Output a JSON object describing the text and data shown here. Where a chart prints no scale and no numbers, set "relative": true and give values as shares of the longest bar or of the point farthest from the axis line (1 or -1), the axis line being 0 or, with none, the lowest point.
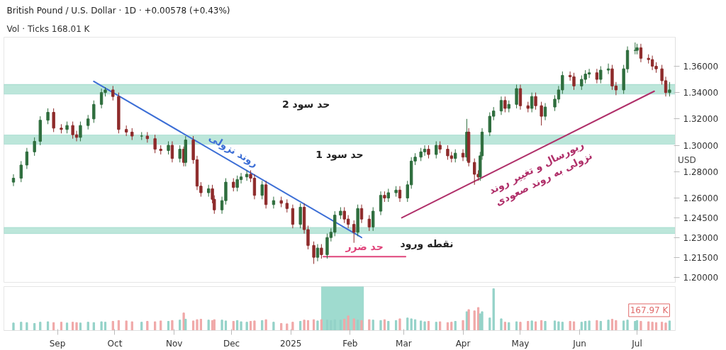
{
  "chart_data": [
    {
      "type": "candlestick",
      "title": "British Pound / U.S. Dollar · 1D · +0.00578 (+0.43%)",
      "subtitle": "Vol · Ticks 168.01 K",
      "ylabel": "USD",
      "x": [
        "2024-08-09",
        "2024-08-13",
        "2024-08-16",
        "2024-08-20",
        "2024-08-23",
        "2024-08-27",
        "2024-08-30",
        "2024-09-03",
        "2024-09-06",
        "2024-09-09",
        "2024-09-11",
        "2024-09-13",
        "2024-09-17",
        "2024-09-20",
        "2024-09-24",
        "2024-09-26",
        "2024-09-30",
        "2024-10-03",
        "2024-10-07",
        "2024-10-10",
        "2024-10-15",
        "2024-10-18",
        "2024-10-22",
        "2024-10-25",
        "2024-10-29",
        "2024-10-31",
        "2024-11-04",
        "2024-11-06",
        "2024-11-07",
        "2024-11-11",
        "2024-11-13",
        "2024-11-15",
        "2024-11-19",
        "2024-11-21",
        "2024-11-22",
        "2024-11-26",
        "2024-11-28",
        "2024-12-02",
        "2024-12-04",
        "2024-12-06",
        "2024-12-09",
        "2024-12-11",
        "2024-12-13",
        "2024-12-17",
        "2024-12-19",
        "2024-12-23",
        "2024-12-27",
        "2024-12-30",
        "2025-01-02",
        "2025-01-06",
        "2025-01-08",
        "2025-01-10",
        "2025-01-13",
        "2025-01-15",
        "2025-01-17",
        "2025-01-20",
        "2025-01-22",
        "2025-01-24",
        "2025-01-27",
        "2025-01-29",
        "2025-01-31",
        "2025-02-03",
        "2025-02-05",
        "2025-02-07",
        "2025-02-11",
        "2025-02-13",
        "2025-02-17",
        "2025-02-19",
        "2025-02-21",
        "2025-02-25",
        "2025-02-27",
        "2025-03-03",
        "2025-03-05",
        "2025-03-07",
        "2025-03-10",
        "2025-03-12",
        "2025-03-14",
        "2025-03-18",
        "2025-03-20",
        "2025-03-24",
        "2025-03-26",
        "2025-03-28",
        "2025-04-01",
        "2025-04-03",
        "2025-04-04",
        "2025-04-07",
        "2025-04-09",
        "2025-04-10",
        "2025-04-11",
        "2025-04-15",
        "2025-04-17",
        "2025-04-21",
        "2025-04-23",
        "2025-04-25",
        "2025-04-29",
        "2025-05-01",
        "2025-05-05",
        "2025-05-07",
        "2025-05-09",
        "2025-05-12",
        "2025-05-14",
        "2025-05-19",
        "2025-05-21",
        "2025-05-23",
        "2025-05-27",
        "2025-05-29",
        "2025-06-02",
        "2025-06-04",
        "2025-06-06",
        "2025-06-10",
        "2025-06-12",
        "2025-06-16",
        "2025-06-18",
        "2025-06-20",
        "2025-06-24",
        "2025-06-26",
        "2025-06-30",
        "2025-07-01",
        "2025-07-03",
        "2025-07-07",
        "2025-07-09",
        "2025-07-11",
        "2025-07-14",
        "2025-07-16",
        "2025-07-18"
      ],
      "ohlc": [
        [
          1.272,
          1.278,
          1.269,
          1.275
        ],
        [
          1.275,
          1.288,
          1.272,
          1.285
        ],
        [
          1.285,
          1.298,
          1.282,
          1.295
        ],
        [
          1.295,
          1.306,
          1.292,
          1.303
        ],
        [
          1.303,
          1.322,
          1.3,
          1.319
        ],
        [
          1.319,
          1.328,
          1.316,
          1.325
        ],
        [
          1.325,
          1.328,
          1.31,
          1.313
        ],
        [
          1.313,
          1.316,
          1.309,
          1.312
        ],
        [
          1.312,
          1.318,
          1.309,
          1.315
        ],
        [
          1.315,
          1.318,
          1.305,
          1.308
        ],
        [
          1.308,
          1.311,
          1.303,
          1.306
        ],
        [
          1.306,
          1.318,
          1.303,
          1.315
        ],
        [
          1.315,
          1.323,
          1.312,
          1.32
        ],
        [
          1.32,
          1.334,
          1.317,
          1.331
        ],
        [
          1.331,
          1.343,
          1.328,
          1.34
        ],
        [
          1.34,
          1.344,
          1.337,
          1.342
        ],
        [
          1.342,
          1.345,
          1.334,
          1.337
        ],
        [
          1.337,
          1.34,
          1.309,
          1.312
        ],
        [
          1.312,
          1.315,
          1.307,
          1.31
        ],
        [
          1.31,
          1.313,
          1.304,
          1.307
        ],
        [
          1.307,
          1.31,
          1.304,
          1.307
        ],
        [
          1.307,
          1.31,
          1.302,
          1.305
        ],
        [
          1.305,
          1.308,
          1.294,
          1.297
        ],
        [
          1.297,
          1.3,
          1.293,
          1.296
        ],
        [
          1.296,
          1.303,
          1.293,
          1.3
        ],
        [
          1.3,
          1.303,
          1.287,
          1.29
        ],
        [
          1.29,
          1.3,
          1.287,
          1.297
        ],
        [
          1.297,
          1.299,
          1.284,
          1.287
        ],
        [
          1.287,
          1.307,
          1.284,
          1.304
        ],
        [
          1.304,
          1.307,
          1.286,
          1.289
        ],
        [
          1.289,
          1.292,
          1.266,
          1.269
        ],
        [
          1.269,
          1.272,
          1.261,
          1.264
        ],
        [
          1.264,
          1.27,
          1.261,
          1.267
        ],
        [
          1.267,
          1.27,
          1.256,
          1.259
        ],
        [
          1.259,
          1.262,
          1.248,
          1.251
        ],
        [
          1.251,
          1.261,
          1.248,
          1.258
        ],
        [
          1.258,
          1.275,
          1.255,
          1.272
        ],
        [
          1.272,
          1.275,
          1.265,
          1.268
        ],
        [
          1.268,
          1.277,
          1.265,
          1.274
        ],
        [
          1.274,
          1.279,
          1.271,
          1.276
        ],
        [
          1.276,
          1.281,
          1.273,
          1.278
        ],
        [
          1.278,
          1.281,
          1.272,
          1.275
        ],
        [
          1.275,
          1.278,
          1.259,
          1.262
        ],
        [
          1.262,
          1.273,
          1.259,
          1.27
        ],
        [
          1.27,
          1.273,
          1.252,
          1.255
        ],
        [
          1.255,
          1.261,
          1.252,
          1.258
        ],
        [
          1.258,
          1.261,
          1.253,
          1.256
        ],
        [
          1.256,
          1.259,
          1.249,
          1.252
        ],
        [
          1.252,
          1.255,
          1.237,
          1.24
        ],
        [
          1.24,
          1.256,
          1.237,
          1.253
        ],
        [
          1.253,
          1.256,
          1.233,
          1.236
        ],
        [
          1.236,
          1.239,
          1.221,
          1.224
        ],
        [
          1.224,
          1.227,
          1.21,
          1.215
        ],
        [
          1.215,
          1.225,
          1.212,
          1.222
        ],
        [
          1.222,
          1.225,
          1.214,
          1.217
        ],
        [
          1.217,
          1.233,
          1.214,
          1.23
        ],
        [
          1.23,
          1.237,
          1.227,
          1.234
        ],
        [
          1.234,
          1.25,
          1.231,
          1.247
        ],
        [
          1.247,
          1.253,
          1.244,
          1.25
        ],
        [
          1.25,
          1.253,
          1.241,
          1.244
        ],
        [
          1.244,
          1.247,
          1.237,
          1.24
        ],
        [
          1.24,
          1.243,
          1.226,
          1.234
        ],
        [
          1.234,
          1.255,
          1.231,
          1.252
        ],
        [
          1.252,
          1.255,
          1.241,
          1.244
        ],
        [
          1.244,
          1.247,
          1.235,
          1.238
        ],
        [
          1.238,
          1.253,
          1.235,
          1.25
        ],
        [
          1.25,
          1.265,
          1.247,
          1.262
        ],
        [
          1.262,
          1.265,
          1.257,
          1.26
        ],
        [
          1.26,
          1.267,
          1.257,
          1.264
        ],
        [
          1.264,
          1.269,
          1.261,
          1.266
        ],
        [
          1.266,
          1.269,
          1.257,
          1.26
        ],
        [
          1.26,
          1.273,
          1.257,
          1.27
        ],
        [
          1.27,
          1.291,
          1.267,
          1.288
        ],
        [
          1.288,
          1.294,
          1.285,
          1.291
        ],
        [
          1.291,
          1.298,
          1.288,
          1.295
        ],
        [
          1.295,
          1.3,
          1.292,
          1.297
        ],
        [
          1.297,
          1.3,
          1.29,
          1.293
        ],
        [
          1.293,
          1.303,
          1.29,
          1.3
        ],
        [
          1.3,
          1.303,
          1.294,
          1.297
        ],
        [
          1.297,
          1.3,
          1.289,
          1.292
        ],
        [
          1.292,
          1.295,
          1.287,
          1.29
        ],
        [
          1.29,
          1.297,
          1.287,
          1.294
        ],
        [
          1.294,
          1.297,
          1.288,
          1.291
        ],
        [
          1.291,
          1.32,
          1.288,
          1.31
        ],
        [
          1.31,
          1.313,
          1.284,
          1.287
        ],
        [
          1.287,
          1.29,
          1.27,
          1.278
        ],
        [
          1.278,
          1.281,
          1.273,
          1.276
        ],
        [
          1.276,
          1.295,
          1.273,
          1.292
        ],
        [
          1.292,
          1.313,
          1.289,
          1.31
        ],
        [
          1.31,
          1.325,
          1.307,
          1.322
        ],
        [
          1.322,
          1.329,
          1.319,
          1.326
        ],
        [
          1.326,
          1.337,
          1.323,
          1.334
        ],
        [
          1.334,
          1.337,
          1.325,
          1.328
        ],
        [
          1.328,
          1.334,
          1.325,
          1.331
        ],
        [
          1.331,
          1.346,
          1.328,
          1.343
        ],
        [
          1.343,
          1.346,
          1.327,
          1.33
        ],
        [
          1.33,
          1.333,
          1.325,
          1.328
        ],
        [
          1.328,
          1.34,
          1.325,
          1.337
        ],
        [
          1.337,
          1.34,
          1.327,
          1.33
        ],
        [
          1.33,
          1.333,
          1.315,
          1.322
        ],
        [
          1.322,
          1.332,
          1.319,
          1.329
        ],
        [
          1.329,
          1.338,
          1.326,
          1.335
        ],
        [
          1.335,
          1.345,
          1.332,
          1.342
        ],
        [
          1.342,
          1.356,
          1.339,
          1.353
        ],
        [
          1.353,
          1.356,
          1.349,
          1.352
        ],
        [
          1.352,
          1.355,
          1.342,
          1.345
        ],
        [
          1.345,
          1.353,
          1.342,
          1.35
        ],
        [
          1.35,
          1.357,
          1.347,
          1.354
        ],
        [
          1.354,
          1.358,
          1.351,
          1.355
        ],
        [
          1.355,
          1.358,
          1.347,
          1.35
        ],
        [
          1.35,
          1.36,
          1.347,
          1.357
        ],
        [
          1.357,
          1.362,
          1.354,
          1.358
        ],
        [
          1.358,
          1.361,
          1.342,
          1.345
        ],
        [
          1.345,
          1.348,
          1.338,
          1.342
        ],
        [
          1.342,
          1.361,
          1.339,
          1.358
        ],
        [
          1.358,
          1.375,
          1.355,
          1.372
        ],
        [
          1.372,
          1.378,
          1.369,
          1.372
        ],
        [
          1.372,
          1.377,
          1.369,
          1.374
        ],
        [
          1.374,
          1.377,
          1.363,
          1.366
        ],
        [
          1.366,
          1.369,
          1.362,
          1.365
        ],
        [
          1.365,
          1.368,
          1.357,
          1.36
        ],
        [
          1.36,
          1.363,
          1.355,
          1.358
        ],
        [
          1.358,
          1.361,
          1.346,
          1.349
        ],
        [
          1.349,
          1.352,
          1.337,
          1.34
        ],
        [
          1.34,
          1.348,
          1.337,
          1.342
        ]
      ],
      "series": [
        {
          "type": "line",
          "name": "روند نزولی",
          "color": "#3d6fd6",
          "x": [
            "2024-09-20",
            "2025-02-07"
          ],
          "values": [
            1.3485,
            1.23
          ]
        },
        {
          "type": "line",
          "name": "حد ضرر",
          "color": "#e0457b",
          "x": [
            "2025-01-18",
            "2025-03-02"
          ],
          "values": [
            1.2155,
            1.2155
          ]
        },
        {
          "type": "line",
          "name": "ریورسال  و تغییر روند\nنزولی به روند صعودی",
          "color": "#b0306a",
          "x": [
            "2025-02-28",
            "2025-07-10"
          ],
          "values": [
            1.245,
            1.341
          ]
        }
      ],
      "bands": [
        {
          "axis": "y",
          "from": 1.3388,
          "to": 1.3462,
          "label": "حد سود 2",
          "color": "#9fdccb"
        },
        {
          "axis": "y",
          "from": 1.3008,
          "to": 1.3078,
          "label": "حد سود 1",
          "color": "#9fdccb"
        },
        {
          "axis": "y",
          "from": 1.233,
          "to": 1.2377,
          "label": "نقطه ورود",
          "color": "#9fdccb"
        }
      ],
      "xlim": [
        "2024-08-04",
        "2025-07-21"
      ],
      "ylim": [
        1.196,
        1.382
      ],
      "yticks": [
        {
          "value": 1.2,
          "label": "1.20000"
        },
        {
          "value": 1.215,
          "label": "1.21500"
        },
        {
          "value": 1.23,
          "label": "1.23000"
        },
        {
          "value": 1.245,
          "label": "1.24500"
        },
        {
          "value": 1.26,
          "label": "1.26000"
        },
        {
          "value": 1.28,
          "label": "1.28000"
        },
        {
          "value": 1.3,
          "label": "1.30000"
        },
        {
          "value": 1.32,
          "label": "1.32000"
        },
        {
          "value": 1.34,
          "label": "1.34000"
        },
        {
          "value": 1.36,
          "label": "1.36000"
        }
      ],
      "tick_labels": "y"
    },
    {
      "type": "bar",
      "relative": true,
      "tick_labels": "x",
      "annotations": [
        "167.97 K"
      ],
      "x": [
        "2024-08-09",
        "2024-08-13",
        "2024-08-16",
        "2024-08-20",
        "2024-08-23",
        "2024-08-27",
        "2024-08-30",
        "2024-09-03",
        "2024-09-06",
        "2024-09-09",
        "2024-09-11",
        "2024-09-13",
        "2024-09-17",
        "2024-09-20",
        "2024-09-24",
        "2024-09-26",
        "2024-09-30",
        "2024-10-03",
        "2024-10-07",
        "2024-10-10",
        "2024-10-15",
        "2024-10-18",
        "2024-10-22",
        "2024-10-25",
        "2024-10-29",
        "2024-10-31",
        "2024-11-04",
        "2024-11-06",
        "2024-11-07",
        "2024-11-11",
        "2024-11-13",
        "2024-11-15",
        "2024-11-19",
        "2024-11-21",
        "2024-11-22",
        "2024-11-26",
        "2024-11-28",
        "2024-12-02",
        "2024-12-04",
        "2024-12-06",
        "2024-12-09",
        "2024-12-11",
        "2024-12-13",
        "2024-12-17",
        "2024-12-19",
        "2024-12-23",
        "2024-12-27",
        "2024-12-30",
        "2025-01-02",
        "2025-01-06",
        "2025-01-08",
        "2025-01-10",
        "2025-01-13",
        "2025-01-15",
        "2025-01-17",
        "2025-01-20",
        "2025-01-22",
        "2025-01-24",
        "2025-01-27",
        "2025-01-29",
        "2025-01-31",
        "2025-02-03",
        "2025-02-05",
        "2025-02-07",
        "2025-02-11",
        "2025-02-13",
        "2025-02-17",
        "2025-02-19",
        "2025-02-21",
        "2025-02-25",
        "2025-02-27",
        "2025-03-03",
        "2025-03-05",
        "2025-03-07",
        "2025-03-10",
        "2025-03-12",
        "2025-03-14",
        "2025-03-18",
        "2025-03-20",
        "2025-03-24",
        "2025-03-26",
        "2025-03-28",
        "2025-04-01",
        "2025-04-03",
        "2025-04-04",
        "2025-04-07",
        "2025-04-09",
        "2025-04-10",
        "2025-04-11",
        "2025-04-15",
        "2025-04-17",
        "2025-04-21",
        "2025-04-23",
        "2025-04-25",
        "2025-04-29",
        "2025-05-01",
        "2025-05-05",
        "2025-05-07",
        "2025-05-09",
        "2025-05-12",
        "2025-05-14",
        "2025-05-19",
        "2025-05-21",
        "2025-05-23",
        "2025-05-27",
        "2025-05-29",
        "2025-06-02",
        "2025-06-04",
        "2025-06-06",
        "2025-06-10",
        "2025-06-12",
        "2025-06-16",
        "2025-06-18",
        "2025-06-20",
        "2025-06-24",
        "2025-06-26",
        "2025-06-30",
        "2025-07-01",
        "2025-07-03",
        "2025-07-07",
        "2025-07-09",
        "2025-07-11",
        "2025-07-14",
        "2025-07-16",
        "2025-07-18"
      ],
      "values": [
        0.18,
        0.2,
        0.19,
        0.17,
        0.2,
        0.21,
        0.19,
        0.2,
        0.18,
        0.2,
        0.19,
        0.18,
        0.2,
        0.19,
        0.21,
        0.2,
        0.22,
        0.24,
        0.23,
        0.21,
        0.2,
        0.22,
        0.21,
        0.23,
        0.22,
        0.24,
        0.25,
        0.42,
        0.27,
        0.23,
        0.26,
        0.27,
        0.25,
        0.24,
        0.26,
        0.25,
        0.23,
        0.22,
        0.24,
        0.21,
        0.2,
        0.22,
        0.23,
        0.24,
        0.26,
        0.2,
        0.17,
        0.16,
        0.2,
        0.22,
        0.25,
        0.24,
        0.26,
        0.23,
        0.26,
        0.25,
        0.24,
        0.26,
        0.25,
        0.27,
        0.35,
        0.28,
        0.25,
        0.24,
        0.26,
        0.25,
        0.24,
        0.26,
        0.22,
        0.24,
        0.28,
        0.3,
        0.28,
        0.26,
        0.23,
        0.21,
        0.22,
        0.2,
        0.21,
        0.19,
        0.2,
        0.22,
        0.24,
        0.45,
        0.5,
        0.47,
        0.55,
        0.4,
        0.45,
        0.3,
        1.0,
        0.28,
        0.2,
        0.19,
        0.21,
        0.2,
        0.22,
        0.23,
        0.21,
        0.24,
        0.22,
        0.23,
        0.21,
        0.2,
        0.22,
        0.21,
        0.2,
        0.22,
        0.23,
        0.24,
        0.22,
        0.25,
        0.27,
        0.24,
        0.23,
        0.25,
        0.22,
        0.24,
        0.22,
        0.21,
        0.2,
        0.19,
        0.2,
        0.18,
        0.23
      ],
      "colors": [
        "#94d2c8",
        "#94d2c8",
        "#94d2c8",
        "#94d2c8",
        "#94d2c8",
        "#94d2c8",
        "#f0a8a8",
        "#f0a8a8",
        "#94d2c8",
        "#f0a8a8",
        "#f0a8a8",
        "#94d2c8",
        "#94d2c8",
        "#94d2c8",
        "#94d2c8",
        "#94d2c8",
        "#f0a8a8",
        "#f0a8a8",
        "#f0a8a8",
        "#f0a8a8",
        "#94d2c8",
        "#f0a8a8",
        "#f0a8a8",
        "#f0a8a8",
        "#94d2c8",
        "#f0a8a8",
        "#94d2c8",
        "#f0a8a8",
        "#94d2c8",
        "#f0a8a8",
        "#f0a8a8",
        "#f0a8a8",
        "#94d2c8",
        "#f0a8a8",
        "#f0a8a8",
        "#94d2c8",
        "#94d2c8",
        "#f0a8a8",
        "#94d2c8",
        "#94d2c8",
        "#94d2c8",
        "#f0a8a8",
        "#f0a8a8",
        "#94d2c8",
        "#f0a8a8",
        "#94d2c8",
        "#f0a8a8",
        "#f0a8a8",
        "#f0a8a8",
        "#94d2c8",
        "#f0a8a8",
        "#f0a8a8",
        "#f0a8a8",
        "#94d2c8",
        "#f0a8a8",
        "#94d2c8",
        "#94d2c8",
        "#94d2c8",
        "#94d2c8",
        "#f0a8a8",
        "#f0a8a8",
        "#f0a8a8",
        "#94d2c8",
        "#f0a8a8",
        "#f0a8a8",
        "#94d2c8",
        "#94d2c8",
        "#f0a8a8",
        "#94d2c8",
        "#94d2c8",
        "#f0a8a8",
        "#94d2c8",
        "#94d2c8",
        "#94d2c8",
        "#94d2c8",
        "#94d2c8",
        "#f0a8a8",
        "#94d2c8",
        "#f0a8a8",
        "#f0a8a8",
        "#f0a8a8",
        "#94d2c8",
        "#f0a8a8",
        "#94d2c8",
        "#f0a8a8",
        "#f0a8a8",
        "#f0a8a8",
        "#94d2c8",
        "#94d2c8",
        "#94d2c8",
        "#94d2c8",
        "#94d2c8",
        "#f0a8a8",
        "#94d2c8",
        "#94d2c8",
        "#f0a8a8",
        "#f0a8a8",
        "#94d2c8",
        "#f0a8a8",
        "#f0a8a8",
        "#94d2c8",
        "#94d2c8",
        "#94d2c8",
        "#94d2c8",
        "#f0a8a8",
        "#f0a8a8",
        "#94d2c8",
        "#94d2c8",
        "#94d2c8",
        "#f0a8a8",
        "#94d2c8",
        "#94d2c8",
        "#f0a8a8",
        "#f0a8a8",
        "#94d2c8",
        "#94d2c8",
        "#94d2c8",
        "#94d2c8",
        "#f0a8a8",
        "#f0a8a8",
        "#f0a8a8",
        "#f0a8a8",
        "#f0a8a8",
        "#f0a8a8",
        "#94d2c8"
      ],
      "bands": [
        {
          "axis": "x",
          "from": "2025-01-17",
          "to": "2025-02-08",
          "color": "#7fcfbf"
        }
      ],
      "xlim": [
        "2024-08-04",
        "2025-07-21"
      ],
      "xticks": [
        {
          "value": "2024-09-01",
          "label": "Sep"
        },
        {
          "value": "2024-10-01",
          "label": "Oct"
        },
        {
          "value": "2024-11-01",
          "label": "Nov"
        },
        {
          "value": "2024-12-01",
          "label": "Dec"
        },
        {
          "value": "2025-01-01",
          "label": "2025"
        },
        {
          "value": "2025-02-01",
          "label": "Feb"
        },
        {
          "value": "2025-03-01",
          "label": "Mar"
        },
        {
          "value": "2025-04-01",
          "label": "Apr"
        },
        {
          "value": "2025-05-01",
          "label": "May"
        },
        {
          "value": "2025-06-01",
          "label": "Jun"
        },
        {
          "value": "2025-07-01",
          "label": "Jul"
        }
      ]
    }
  ]
}
